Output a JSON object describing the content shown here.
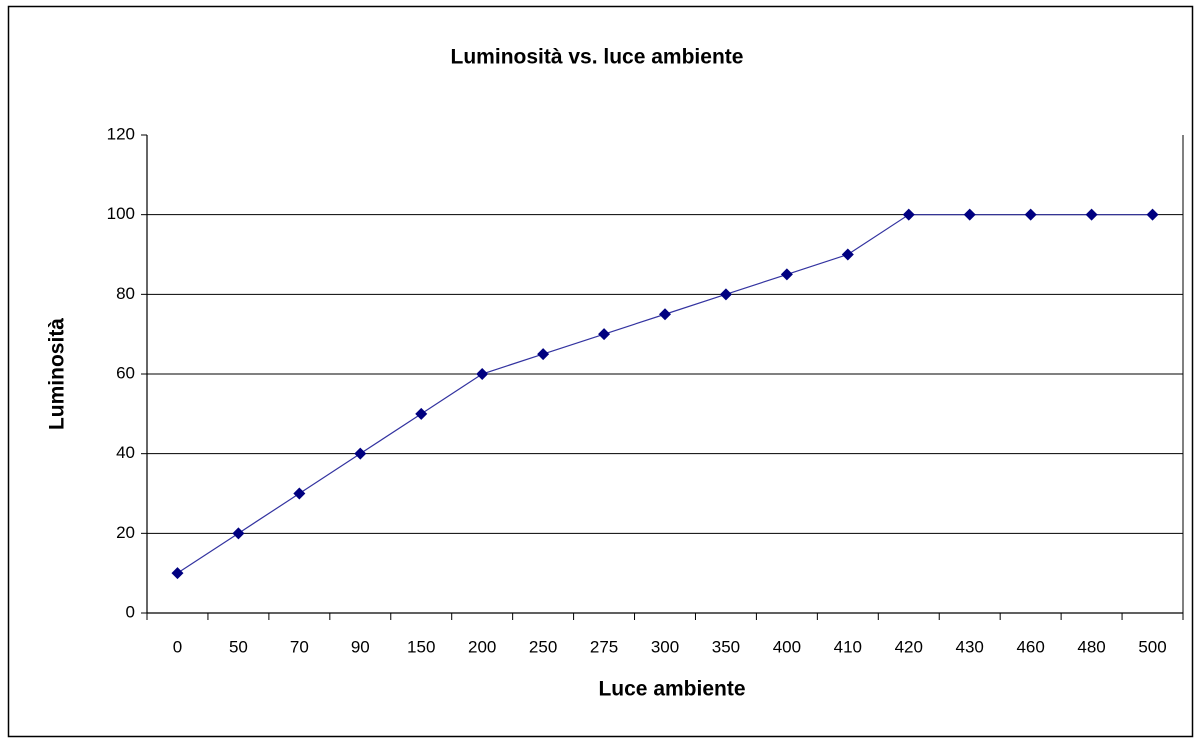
{
  "chart_data": {
    "type": "line",
    "title": "Luminosità vs. luce ambiente",
    "x_label": "Luce ambiente",
    "y_label": "Luminosità",
    "categories": [
      "0",
      "50",
      "70",
      "90",
      "150",
      "200",
      "250",
      "275",
      "300",
      "350",
      "400",
      "410",
      "420",
      "430",
      "460",
      "480",
      "500"
    ],
    "series": [
      {
        "name": "Luminosità",
        "color": "#000080",
        "values": [
          10,
          20,
          30,
          40,
          50,
          60,
          65,
          70,
          75,
          80,
          85,
          90,
          100,
          100,
          100,
          100,
          100
        ]
      }
    ],
    "ylim": [
      0,
      120
    ],
    "yticks": [
      0,
      20,
      40,
      60,
      80,
      100,
      120
    ],
    "grid": true
  }
}
